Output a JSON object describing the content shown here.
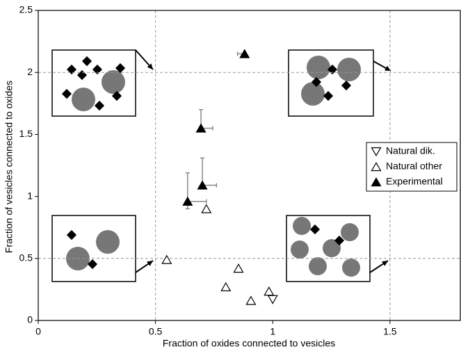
{
  "chart_data": {
    "type": "scatter",
    "xlabel": "Fraction of oxides connected to vesicles",
    "ylabel": "Fraction of vesicles connected  to oxides",
    "xlim": [
      0,
      1.8
    ],
    "ylim": [
      0,
      2.5
    ],
    "xticks": [
      0,
      0.5,
      1,
      1.5
    ],
    "yticks": [
      0,
      0.5,
      1,
      1.5,
      2,
      2.5
    ],
    "dashed_x": [
      0.5,
      1.5
    ],
    "dashed_y": [
      0.5,
      2
    ],
    "series": [
      {
        "name": "Natural dik.",
        "marker": "triangle-down",
        "color": "#ffffff",
        "x": [
          1.0
        ],
        "y": [
          0.17
        ]
      },
      {
        "name": "Natural other",
        "marker": "triangle-up",
        "color": "#ffffff",
        "x": [
          0.548,
          0.717,
          0.854,
          0.8,
          0.907,
          0.984
        ],
        "y": [
          0.49,
          0.9,
          0.42,
          0.27,
          0.16,
          0.235
        ]
      },
      {
        "name": "Experimental",
        "marker": "triangle-up",
        "color": "#000000",
        "x": [
          0.88,
          0.694,
          0.7,
          0.637
        ],
        "y": [
          2.15,
          1.55,
          1.09,
          0.96
        ],
        "x_err_low": [
          0.03,
          null,
          null,
          null
        ],
        "x_err_high": [
          null,
          0.05,
          0.06,
          0.08
        ],
        "y_err_low": [
          null,
          null,
          null,
          0.06
        ],
        "y_err_high": [
          null,
          0.15,
          0.22,
          0.23
        ]
      }
    ]
  }
}
